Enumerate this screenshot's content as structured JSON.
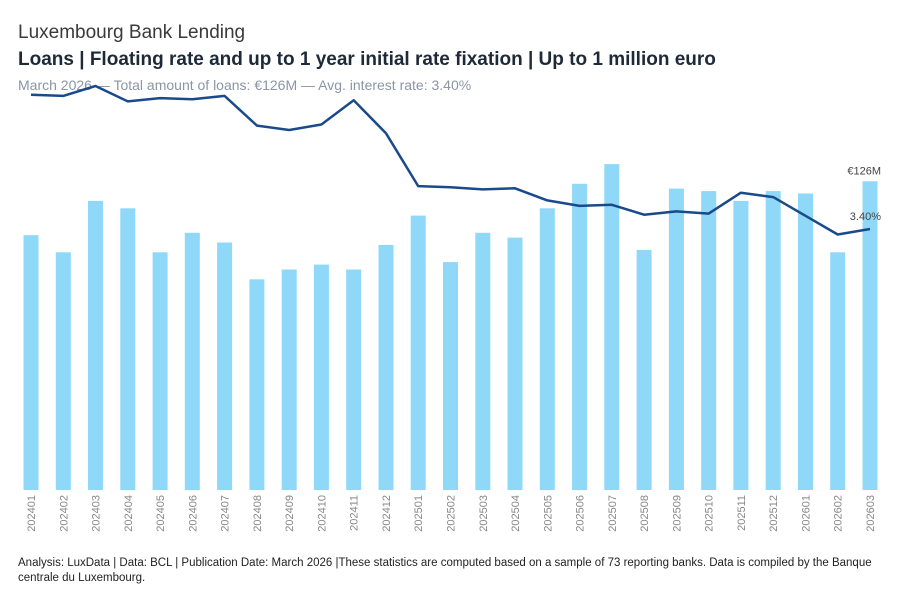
{
  "header": {
    "supertitle": "Luxembourg Bank Lending",
    "title": "Loans | Floating rate and up to 1 year initial rate fixation | Up to 1 million euro",
    "subtitle": "March 2026 — Total amount of loans: €126M — Avg. interest rate: 3.40%"
  },
  "footer": {
    "text": "Analysis: LuxData | Data: BCL | Publication Date: March 2026 |These statistics are computed based on a sample of 73 reporting banks. Data is compiled by the Banque centrale du Luxembourg."
  },
  "colors": {
    "bars": "#8fd8f8",
    "line": "#1a4a8a",
    "axis_text": "#888888"
  },
  "chart_data": {
    "type": "bar",
    "categories": [
      "202401",
      "202402",
      "202403",
      "202404",
      "202405",
      "202406",
      "202407",
      "202408",
      "202409",
      "202410",
      "202411",
      "202412",
      "202501",
      "202502",
      "202503",
      "202504",
      "202505",
      "202506",
      "202507",
      "202508",
      "202509",
      "202510",
      "202511",
      "202512",
      "202601",
      "202602",
      "202603"
    ],
    "series": [
      {
        "type": "bar",
        "values": [
          104,
          97,
          118,
          115,
          97,
          105,
          101,
          86,
          90,
          92,
          90,
          100,
          112,
          93,
          105,
          103,
          115,
          125,
          133,
          98,
          123,
          122,
          118,
          122,
          121,
          97,
          126
        ]
      },
      {
        "type": "line",
        "values": [
          4.62,
          4.61,
          4.7,
          4.56,
          4.59,
          4.58,
          4.61,
          4.34,
          4.3,
          4.35,
          4.57,
          4.27,
          3.79,
          3.78,
          3.76,
          3.77,
          3.66,
          3.61,
          3.62,
          3.53,
          3.56,
          3.54,
          3.73,
          3.69,
          3.52,
          3.35,
          3.4
        ]
      }
    ],
    "last_labels": {
      "bar": "€126M",
      "line": "3.40%"
    },
    "grid": false,
    "legend": "none"
  }
}
